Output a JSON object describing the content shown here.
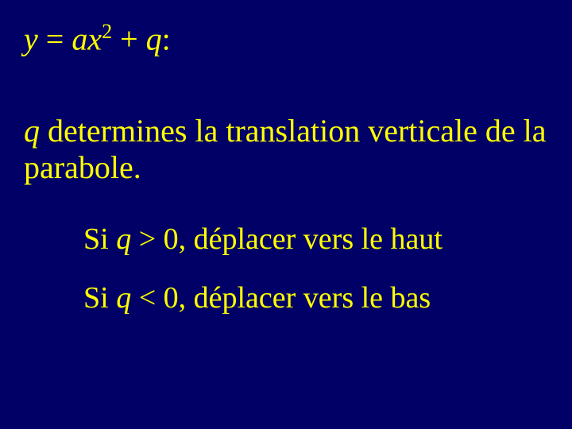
{
  "background_color": "#000066",
  "text_color": "#ffff00",
  "font_family": "Times New Roman",
  "equation": {
    "y": "y",
    "equals": " = ",
    "a": "a",
    "x": "x",
    "exp": "2",
    "plus": " + ",
    "q": "q",
    "colon": ":",
    "fontsize": 40
  },
  "description": {
    "variable": "q",
    "text": " determines la translation verticale de la parabole.",
    "fontsize": 40
  },
  "condition1": {
    "prefix": "Si ",
    "variable": "q",
    "comparison": " > 0, déplacer vers le haut",
    "fontsize": 38
  },
  "condition2": {
    "prefix": "Si ",
    "variable": "q",
    "comparison": " < 0, déplacer vers le bas",
    "fontsize": 38
  }
}
